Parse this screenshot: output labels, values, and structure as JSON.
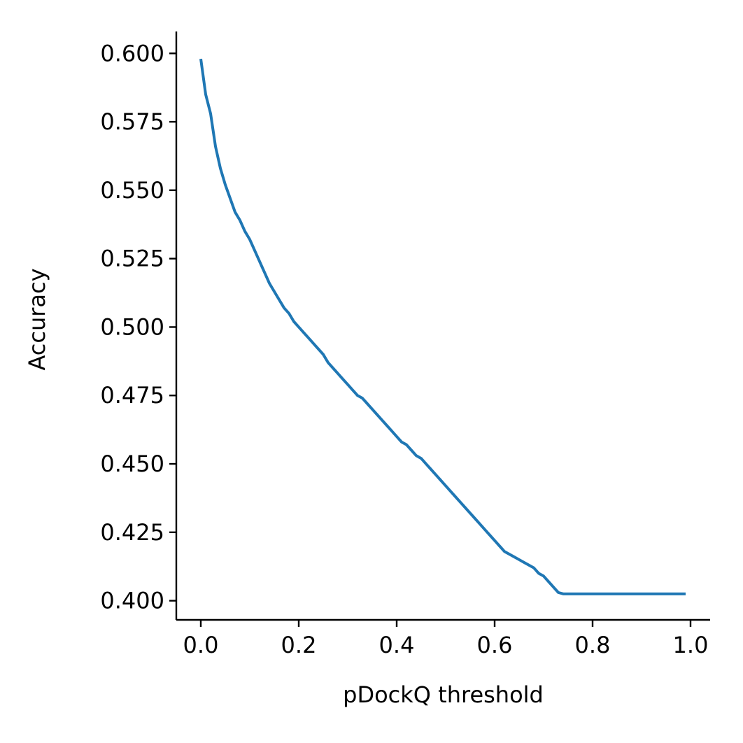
{
  "chart_data": {
    "type": "line",
    "title": "",
    "xlabel": "pDockQ threshold",
    "ylabel": "Accuracy",
    "xlim": [
      -0.05,
      1.04
    ],
    "ylim": [
      0.393,
      0.608
    ],
    "xticks": [
      0.0,
      0.2,
      0.4,
      0.6,
      0.8,
      1.0
    ],
    "xtick_labels": [
      "0.0",
      "0.2",
      "0.4",
      "0.6",
      "0.8",
      "1.0"
    ],
    "yticks": [
      0.4,
      0.425,
      0.45,
      0.475,
      0.5,
      0.525,
      0.55,
      0.575,
      0.6
    ],
    "ytick_labels": [
      "0.400",
      "0.425",
      "0.450",
      "0.475",
      "0.500",
      "0.525",
      "0.550",
      "0.575",
      "0.600"
    ],
    "grid": false,
    "series": [
      {
        "color": "#1f77b4",
        "x": [
          0.0,
          0.01,
          0.02,
          0.03,
          0.04,
          0.05,
          0.06,
          0.07,
          0.08,
          0.09,
          0.1,
          0.11,
          0.12,
          0.13,
          0.14,
          0.15,
          0.16,
          0.17,
          0.18,
          0.19,
          0.2,
          0.21,
          0.22,
          0.23,
          0.24,
          0.25,
          0.26,
          0.27,
          0.28,
          0.29,
          0.3,
          0.31,
          0.32,
          0.33,
          0.34,
          0.35,
          0.36,
          0.37,
          0.38,
          0.39,
          0.4,
          0.41,
          0.42,
          0.43,
          0.44,
          0.45,
          0.46,
          0.47,
          0.48,
          0.49,
          0.5,
          0.51,
          0.52,
          0.53,
          0.54,
          0.55,
          0.56,
          0.57,
          0.58,
          0.59,
          0.6,
          0.61,
          0.62,
          0.63,
          0.64,
          0.65,
          0.66,
          0.67,
          0.68,
          0.69,
          0.7,
          0.71,
          0.72,
          0.73,
          0.74,
          0.75,
          0.8,
          0.85,
          0.9,
          0.95,
          0.99
        ],
        "y": [
          0.598,
          0.585,
          0.578,
          0.566,
          0.558,
          0.552,
          0.547,
          0.542,
          0.539,
          0.535,
          0.532,
          0.528,
          0.524,
          0.52,
          0.516,
          0.513,
          0.51,
          0.507,
          0.505,
          0.502,
          0.5,
          0.498,
          0.496,
          0.494,
          0.492,
          0.49,
          0.487,
          0.485,
          0.483,
          0.481,
          0.479,
          0.477,
          0.475,
          0.474,
          0.472,
          0.47,
          0.468,
          0.466,
          0.464,
          0.462,
          0.46,
          0.458,
          0.457,
          0.455,
          0.453,
          0.452,
          0.45,
          0.448,
          0.446,
          0.444,
          0.442,
          0.44,
          0.438,
          0.436,
          0.434,
          0.432,
          0.43,
          0.428,
          0.426,
          0.424,
          0.422,
          0.42,
          0.418,
          0.417,
          0.416,
          0.415,
          0.414,
          0.413,
          0.412,
          0.41,
          0.409,
          0.407,
          0.405,
          0.403,
          0.4025,
          0.4025,
          0.4025,
          0.4025,
          0.4025,
          0.4025,
          0.4025
        ]
      }
    ]
  }
}
